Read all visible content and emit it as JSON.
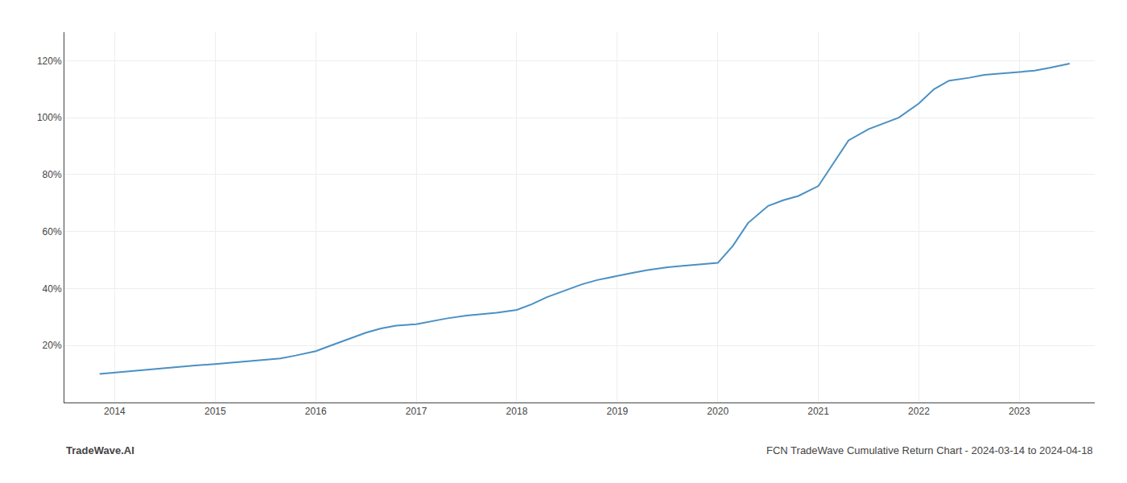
{
  "chart_data": {
    "type": "line",
    "x": [
      2013.85,
      2014.0,
      2014.15,
      2014.3,
      2014.5,
      2014.65,
      2014.8,
      2015.0,
      2015.15,
      2015.3,
      2015.5,
      2015.65,
      2015.8,
      2016.0,
      2016.15,
      2016.3,
      2016.5,
      2016.65,
      2016.8,
      2017.0,
      2017.15,
      2017.3,
      2017.5,
      2017.65,
      2017.8,
      2018.0,
      2018.15,
      2018.3,
      2018.5,
      2018.65,
      2018.8,
      2019.0,
      2019.15,
      2019.3,
      2019.5,
      2019.65,
      2019.8,
      2020.0,
      2020.15,
      2020.3,
      2020.5,
      2020.65,
      2020.8,
      2021.0,
      2021.15,
      2021.3,
      2021.5,
      2021.65,
      2021.8,
      2022.0,
      2022.15,
      2022.3,
      2022.5,
      2022.65,
      2022.8,
      2023.0,
      2023.15,
      2023.3,
      2023.5
    ],
    "values": [
      10,
      10.5,
      11.0,
      11.5,
      12.0,
      12.5,
      13.0,
      13.5,
      14.0,
      14.5,
      15.0,
      15.5,
      16.5,
      18.0,
      20.0,
      22.0,
      24.5,
      26.0,
      27.0,
      27.5,
      28.5,
      29.5,
      30.5,
      31.0,
      31.5,
      32.5,
      34.5,
      37.0,
      39.5,
      41.5,
      43.0,
      44.5,
      45.5,
      46.5,
      47.5,
      48.0,
      48.5,
      49.0,
      55.0,
      63.0,
      69.0,
      71.0,
      72.5,
      76.0,
      84.0,
      92.0,
      96.0,
      98.0,
      100.0,
      105.0,
      110.0,
      113.0,
      114.0,
      115.0,
      115.5,
      116.0,
      116.5,
      117.5,
      119.0
    ],
    "color": "#4a90c4",
    "xlim": [
      2013.5,
      2023.75
    ],
    "xticks": [
      2014,
      2015,
      2016,
      2017,
      2018,
      2019,
      2020,
      2021,
      2022,
      2023
    ],
    "ylim": [
      0,
      130
    ],
    "yticks": [
      {
        "value": 20,
        "label": "20%"
      },
      {
        "value": 40,
        "label": "40%"
      },
      {
        "value": 60,
        "label": "60%"
      },
      {
        "value": 80,
        "label": "80%"
      },
      {
        "value": 100,
        "label": "100%"
      },
      {
        "value": 120,
        "label": "120%"
      }
    ],
    "grid": true,
    "annotations": [
      "TradeWave.AI",
      "FCN TradeWave Cumulative Return Chart - 2024-03-14 to 2024-04-18"
    ]
  }
}
